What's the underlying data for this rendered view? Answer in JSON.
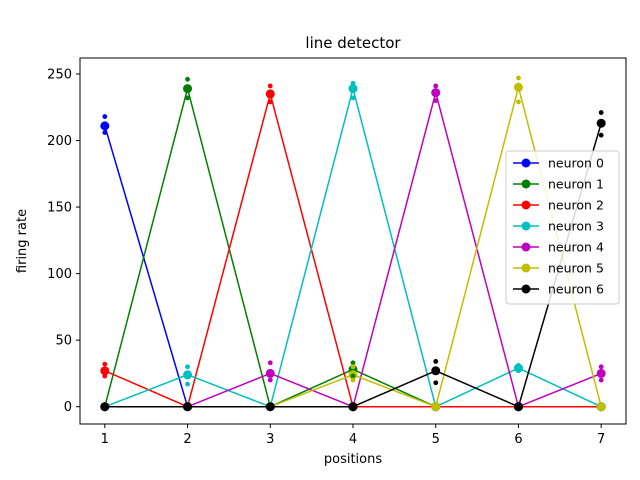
{
  "chart_data": {
    "type": "line",
    "title": "line detector",
    "xlabel": "positions",
    "ylabel": "firing rate",
    "xlim": [
      0.7,
      7.3
    ],
    "ylim": [
      -13,
      262
    ],
    "xticks": [
      1,
      2,
      3,
      4,
      5,
      6,
      7
    ],
    "yticks": [
      0,
      50,
      100,
      150,
      200,
      250
    ],
    "legend_position": "center-right",
    "grid": false,
    "x": [
      1,
      2,
      3,
      4,
      5,
      6,
      7
    ],
    "series": [
      {
        "name": "neuron 0",
        "color": "#0000ff",
        "values": [
          211,
          0,
          0,
          0,
          0,
          0,
          0
        ]
      },
      {
        "name": "neuron 1",
        "color": "#008000",
        "values": [
          0,
          239,
          0,
          28,
          0,
          0,
          0
        ]
      },
      {
        "name": "neuron 2",
        "color": "#ff0000",
        "values": [
          27,
          0,
          235,
          0,
          0,
          0,
          0
        ]
      },
      {
        "name": "neuron 3",
        "color": "#00bfbf",
        "values": [
          0,
          24,
          0,
          239,
          0,
          29,
          0
        ]
      },
      {
        "name": "neuron 4",
        "color": "#bf00bf",
        "values": [
          0,
          0,
          25,
          0,
          236,
          0,
          25
        ]
      },
      {
        "name": "neuron 5",
        "color": "#bfbf00",
        "values": [
          0,
          0,
          0,
          24,
          0,
          240,
          0
        ]
      },
      {
        "name": "neuron 6",
        "color": "#000000",
        "values": [
          0,
          0,
          0,
          0,
          27,
          0,
          213
        ]
      }
    ],
    "samples": [
      {
        "series": 0,
        "x": 1,
        "y": [
          218,
          206
        ]
      },
      {
        "series": 1,
        "x": 2,
        "y": [
          246,
          232
        ]
      },
      {
        "series": 1,
        "x": 4,
        "y": [
          33,
          23
        ]
      },
      {
        "series": 2,
        "x": 1,
        "y": [
          32,
          23
        ]
      },
      {
        "series": 2,
        "x": 3,
        "y": [
          241,
          229
        ]
      },
      {
        "series": 3,
        "x": 2,
        "y": [
          30,
          17
        ]
      },
      {
        "series": 3,
        "x": 4,
        "y": [
          243,
          232
        ]
      },
      {
        "series": 3,
        "x": 6,
        "y": [
          31,
          27
        ]
      },
      {
        "series": 4,
        "x": 3,
        "y": [
          33,
          20
        ]
      },
      {
        "series": 4,
        "x": 5,
        "y": [
          241,
          230
        ]
      },
      {
        "series": 4,
        "x": 7,
        "y": [
          30,
          20
        ]
      },
      {
        "series": 5,
        "x": 4,
        "y": [
          30,
          20
        ]
      },
      {
        "series": 5,
        "x": 6,
        "y": [
          247,
          229
        ]
      },
      {
        "series": 6,
        "x": 5,
        "y": [
          34,
          18
        ]
      },
      {
        "series": 6,
        "x": 7,
        "y": [
          221,
          204
        ]
      }
    ]
  }
}
